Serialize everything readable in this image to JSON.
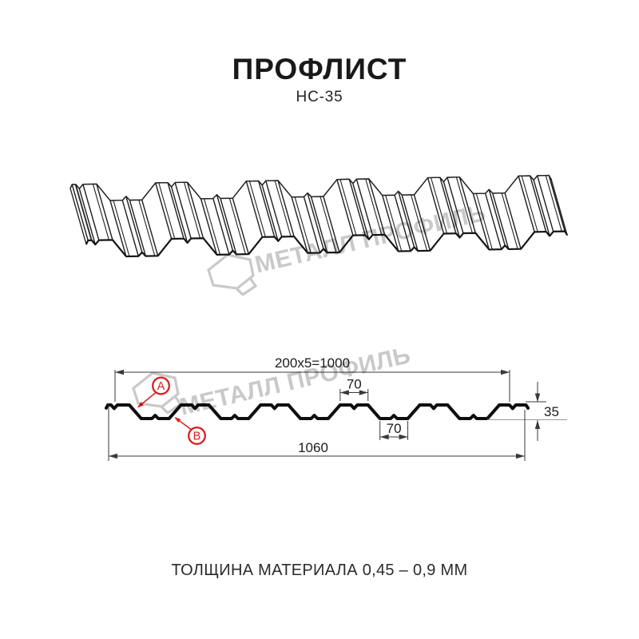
{
  "header": {
    "title": "ПРОФЛИСТ",
    "subtitle": "НС-35"
  },
  "watermark": {
    "text": "МЕТАЛЛ ПРОФИЛЬ"
  },
  "footer": {
    "note": "ТОЛЩИНА МАТЕРИАЛА 0,45 – 0,9 ММ"
  },
  "colors": {
    "line3d": "#222222",
    "near_outline": "#161616",
    "profile": "#0e0e0e",
    "dim": "#3a3a3a",
    "dim_text": "#1b1b1b",
    "reference_line": "#9a9a9a",
    "red": "#d62121",
    "watermark": "#c9c9c9"
  },
  "chart_data": {
    "type": "technical-profile-drawing",
    "profile_name": "НС-35",
    "dimension_labels": {
      "pitch": "200x5=1000",
      "crest_width": "70",
      "valley_width": "70",
      "height": "35",
      "overall_width": "1060"
    },
    "dimensions_mm": {
      "module_pitch": 200,
      "module_count": 5,
      "working_width": 1000,
      "overall_width": 1060,
      "profile_height": 35,
      "crest_flat": 70,
      "valley_flat": 70
    },
    "callouts": [
      {
        "label": "A"
      },
      {
        "label": "B"
      }
    ],
    "thickness_note": "ТОЛЩИНА МАТЕРИАЛА 0,45 – 0,9 ММ"
  }
}
